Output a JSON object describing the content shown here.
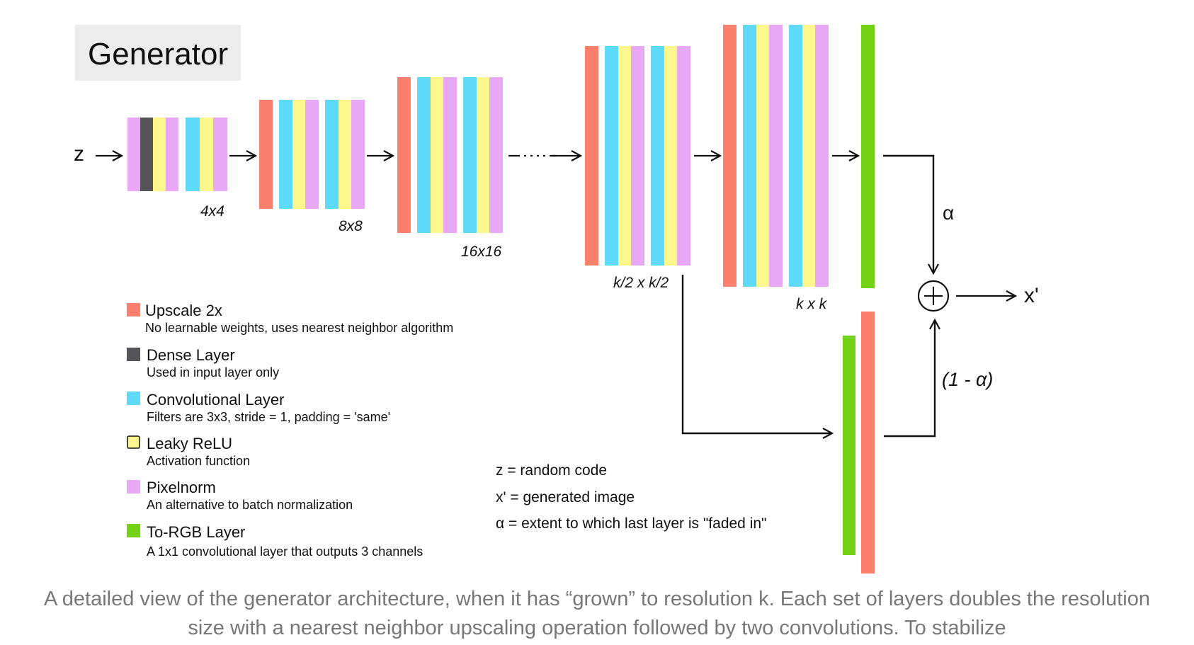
{
  "title": "Generator",
  "input_label": "z",
  "output_label": "x'",
  "alpha_label": "α",
  "one_minus_alpha_label": "(1 - α)",
  "resolutions": [
    "4x4",
    "8x8",
    "16x16",
    "k/2 x k/2",
    "k x k"
  ],
  "legend": [
    {
      "name": "Upscale 2x",
      "desc": "No learnable weights, uses nearest neighbor algorithm",
      "color": "#fa7f6d"
    },
    {
      "name": "Dense Layer",
      "desc": "Used in input layer only",
      "color": "#555458"
    },
    {
      "name": "Convolutional Layer",
      "desc": "Filters are 3x3, stride = 1,  padding = 'same'",
      "color": "#5edaf8"
    },
    {
      "name": "Leaky ReLU",
      "desc": "Activation function",
      "color": "#fbf78d"
    },
    {
      "name": "Pixelnorm",
      "desc": "An alternative to batch normalization",
      "color": "#e8a8f5"
    },
    {
      "name": "To-RGB Layer",
      "desc": "A 1x1 convolutional layer that outputs 3 channels",
      "color": "#73d216"
    }
  ],
  "definitions": [
    "z = random code",
    "x' = generated image",
    "α = extent to which last layer is \"faded in\""
  ],
  "caption": "A detailed view of the generator architecture, when it has “grown” to resolution k. Each set of layers doubles the resolution size with a nearest neighbor upscaling operation followed by two convolutions. To stabilize",
  "colors": {
    "upscale": "#fa7f6d",
    "dense": "#555458",
    "conv": "#5edaf8",
    "relu": "#fbf78d",
    "pixelnorm": "#e8a8f5",
    "torgb": "#73d216",
    "title_bg": "#ececec"
  }
}
